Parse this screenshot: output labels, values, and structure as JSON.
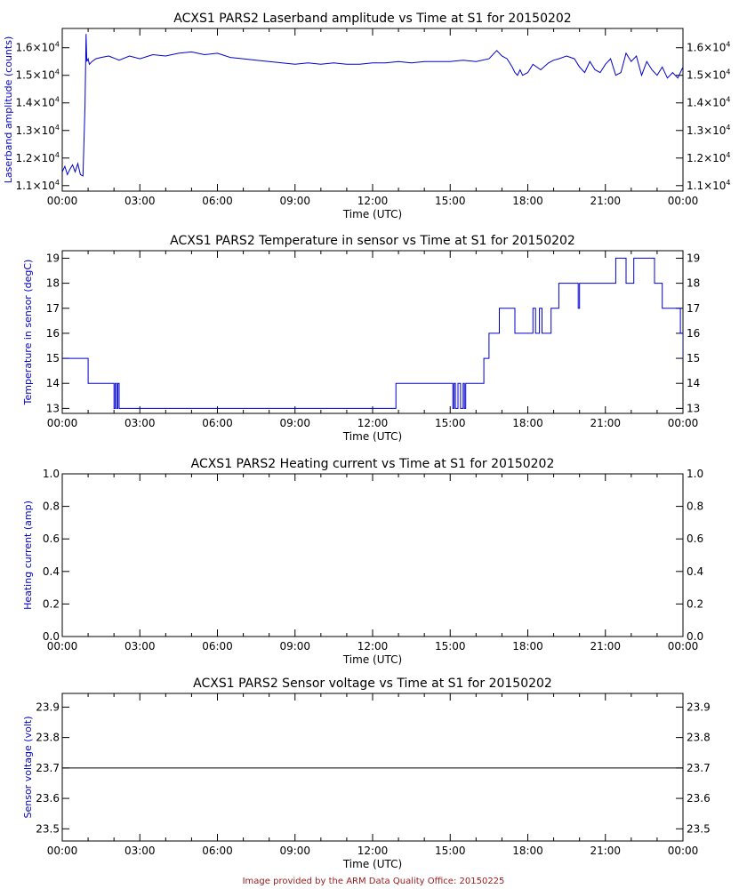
{
  "footer": {
    "text": "Image provided by the ARM Data Quality Office: 20150225"
  },
  "styles": {
    "axis_color": "#000000",
    "series_color": "#0000cc",
    "label_color": "#0000cc",
    "voltage_line_color": "#000000"
  },
  "chart_data": [
    {
      "type": "line",
      "title": "ACXS1 PARS2 Laserband amplitude vs Time at S1 for 20150202",
      "xlabel": "Time (UTC)",
      "ylabel": "Laserband amplitude (counts)",
      "x_ticks": [
        "00:00",
        "03:00",
        "06:00",
        "09:00",
        "12:00",
        "15:00",
        "18:00",
        "21:00",
        "00:00"
      ],
      "y_ticks": [
        {
          "value": 11000,
          "mantissa": "1.1",
          "sup": "4"
        },
        {
          "value": 12000,
          "mantissa": "1.2",
          "sup": "4"
        },
        {
          "value": 13000,
          "mantissa": "1.3",
          "sup": "4"
        },
        {
          "value": 14000,
          "mantissa": "1.4",
          "sup": "4"
        },
        {
          "value": 15000,
          "mantissa": "1.5",
          "sup": "4"
        },
        {
          "value": 16000,
          "mantissa": "1.6",
          "sup": "4"
        }
      ],
      "tick_times_label": "×10",
      "xlim": [
        0,
        24
      ],
      "ylim": [
        10800,
        16700
      ],
      "series": [
        {
          "x": [
            0.0,
            0.1,
            0.2,
            0.3,
            0.4,
            0.5,
            0.6,
            0.7,
            0.8,
            0.88,
            0.92,
            0.95,
            1.0,
            1.05,
            1.15,
            1.3,
            1.5,
            1.8,
            2.2,
            2.6,
            3.0,
            3.5,
            4.0,
            4.5,
            5.0,
            5.5,
            6.0,
            6.5,
            7.0,
            7.5,
            8.0,
            8.5,
            9.0,
            9.5,
            10.0,
            10.5,
            11.0,
            11.5,
            12.0,
            12.5,
            13.0,
            13.5,
            14.0,
            14.5,
            15.0,
            15.5,
            16.0,
            16.5,
            16.8,
            17.0,
            17.2,
            17.4,
            17.5,
            17.6,
            17.7,
            17.8,
            18.0,
            18.2,
            18.5,
            18.8,
            19.0,
            19.2,
            19.5,
            19.8,
            20.0,
            20.2,
            20.4,
            20.6,
            20.8,
            21.0,
            21.2,
            21.4,
            21.6,
            21.8,
            22.0,
            22.2,
            22.4,
            22.6,
            22.8,
            23.0,
            23.2,
            23.4,
            23.6,
            23.8,
            24.0
          ],
          "y": [
            11500,
            11700,
            11400,
            11600,
            11750,
            11500,
            11800,
            11400,
            11350,
            13900,
            16500,
            15500,
            15600,
            15400,
            15500,
            15600,
            15650,
            15700,
            15550,
            15700,
            15600,
            15750,
            15700,
            15800,
            15850,
            15750,
            15800,
            15650,
            15600,
            15550,
            15500,
            15450,
            15400,
            15450,
            15400,
            15450,
            15400,
            15400,
            15450,
            15450,
            15500,
            15450,
            15500,
            15500,
            15500,
            15550,
            15500,
            15600,
            15900,
            15700,
            15600,
            15300,
            15100,
            15000,
            15200,
            15000,
            15100,
            15400,
            15200,
            15450,
            15550,
            15600,
            15700,
            15600,
            15300,
            15100,
            15500,
            15200,
            15100,
            15400,
            15600,
            15000,
            15100,
            15800,
            15500,
            15700,
            15000,
            15500,
            15200,
            15000,
            15300,
            14900,
            15100,
            14900,
            15300
          ]
        }
      ]
    },
    {
      "type": "line",
      "title": "ACXS1 PARS2 Temperature in sensor vs Time at S1 for 20150202",
      "xlabel": "Time (UTC)",
      "ylabel": "Temperature in sensor (degC)",
      "x_ticks": [
        "00:00",
        "03:00",
        "06:00",
        "09:00",
        "12:00",
        "15:00",
        "18:00",
        "21:00",
        "00:00"
      ],
      "y_ticks": [
        {
          "value": 13,
          "label": "13"
        },
        {
          "value": 14,
          "label": "14"
        },
        {
          "value": 15,
          "label": "15"
        },
        {
          "value": 16,
          "label": "16"
        },
        {
          "value": 17,
          "label": "17"
        },
        {
          "value": 18,
          "label": "18"
        },
        {
          "value": 19,
          "label": "19"
        }
      ],
      "xlim": [
        0,
        24
      ],
      "ylim": [
        12.8,
        19.3
      ],
      "step": true,
      "series": [
        {
          "x": [
            0.0,
            1.0,
            2.0,
            2.05,
            2.1,
            2.15,
            2.2,
            12.9,
            15.1,
            15.15,
            15.2,
            15.3,
            15.4,
            15.5,
            15.55,
            15.6,
            16.3,
            16.5,
            16.7,
            16.9,
            17.5,
            18.2,
            18.3,
            18.45,
            18.55,
            18.9,
            19.2,
            19.95,
            20.0,
            20.1,
            21.4,
            21.8,
            22.1,
            22.4,
            22.9,
            23.2,
            23.9,
            24.0
          ],
          "y": [
            15,
            14,
            13,
            14,
            13,
            14,
            13,
            14,
            13,
            14,
            13,
            14,
            13,
            14,
            13,
            14,
            15,
            16,
            16,
            17,
            16,
            17,
            16,
            17,
            16,
            17,
            18,
            17,
            18,
            18,
            19,
            18,
            19,
            19,
            18,
            17,
            16,
            15
          ]
        }
      ]
    },
    {
      "type": "line",
      "title": "ACXS1 PARS2 Heating current vs Time at S1 for 20150202",
      "xlabel": "Time (UTC)",
      "ylabel": "Heating current (amp)",
      "x_ticks": [
        "00:00",
        "03:00",
        "06:00",
        "09:00",
        "12:00",
        "15:00",
        "18:00",
        "21:00",
        "00:00"
      ],
      "y_ticks": [
        {
          "value": 0.0,
          "label": "0.0"
        },
        {
          "value": 0.2,
          "label": "0.2"
        },
        {
          "value": 0.4,
          "label": "0.4"
        },
        {
          "value": 0.6,
          "label": "0.6"
        },
        {
          "value": 0.8,
          "label": "0.8"
        },
        {
          "value": 1.0,
          "label": "1.0"
        }
      ],
      "xlim": [
        0,
        24
      ],
      "ylim": [
        0,
        1
      ],
      "series": []
    },
    {
      "type": "line",
      "title": "ACXS1 PARS2 Sensor voltage vs Time at S1 for 20150202",
      "xlabel": "Time (UTC)",
      "ylabel": "Sensor voltage (volt)",
      "x_ticks": [
        "00:00",
        "03:00",
        "06:00",
        "09:00",
        "12:00",
        "15:00",
        "18:00",
        "21:00",
        "00:00"
      ],
      "y_ticks": [
        {
          "value": 23.5,
          "label": "23.5"
        },
        {
          "value": 23.6,
          "label": "23.6"
        },
        {
          "value": 23.7,
          "label": "23.7"
        },
        {
          "value": 23.8,
          "label": "23.8"
        },
        {
          "value": 23.9,
          "label": "23.9"
        }
      ],
      "xlim": [
        0,
        24
      ],
      "ylim": [
        23.46,
        23.945
      ],
      "series": [
        {
          "x": [
            0,
            24
          ],
          "y": [
            23.7,
            23.7
          ]
        }
      ]
    }
  ]
}
